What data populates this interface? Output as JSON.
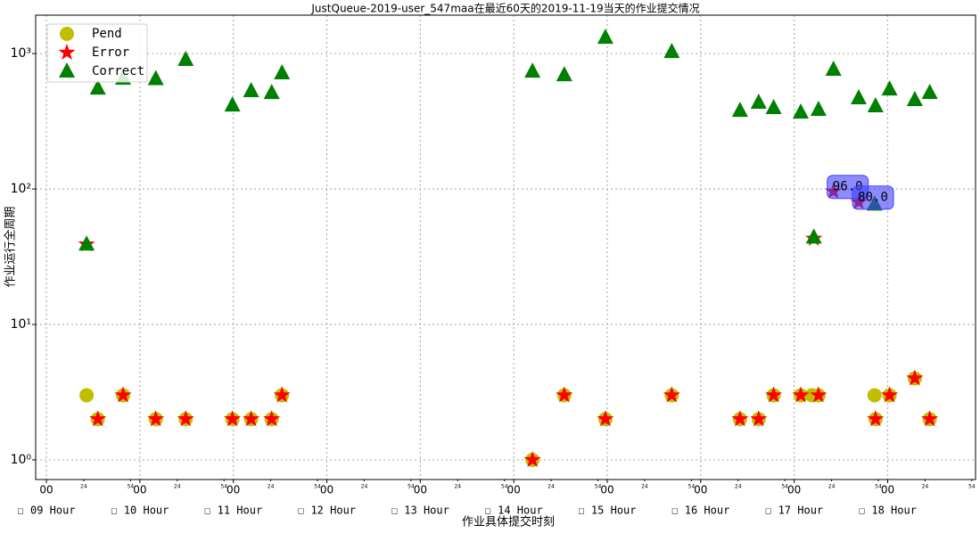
{
  "chart_data": {
    "type": "scatter",
    "title": "JustQueue-2019-user_547maa在最近60天的2019-11-19当天的作业提交情况",
    "x_label": "作业具体提交时刻",
    "y_label": "作业运行全周期",
    "log_y": true,
    "grid": true,
    "legend": "upper left",
    "xlim": [
      8.885,
      18.94
    ],
    "ylim": [
      0.716,
      1920
    ],
    "xticks": [
      {
        "value": 9,
        "label": "00"
      },
      {
        "value": 10,
        "label": "00"
      },
      {
        "value": 11,
        "label": "00"
      },
      {
        "value": 12,
        "label": "00"
      },
      {
        "value": 13,
        "label": "00"
      },
      {
        "value": 14,
        "label": "00"
      },
      {
        "value": 15,
        "label": "00"
      },
      {
        "value": 16,
        "label": "00"
      },
      {
        "value": 17,
        "label": "00"
      },
      {
        "value": 18,
        "label": "00"
      }
    ],
    "xminorticks": [
      {
        "value": 9.4,
        "label": "24"
      },
      {
        "value": 9.9,
        "label": "54"
      },
      {
        "value": 10.4,
        "label": "24"
      },
      {
        "value": 10.9,
        "label": "54"
      },
      {
        "value": 11.4,
        "label": "24"
      },
      {
        "value": 11.9,
        "label": "54"
      },
      {
        "value": 12.4,
        "label": "24"
      },
      {
        "value": 12.9,
        "label": "54"
      },
      {
        "value": 13.4,
        "label": "24"
      },
      {
        "value": 13.9,
        "label": "54"
      },
      {
        "value": 14.4,
        "label": "24"
      },
      {
        "value": 14.9,
        "label": "54"
      },
      {
        "value": 15.4,
        "label": "24"
      },
      {
        "value": 15.9,
        "label": "54"
      },
      {
        "value": 16.4,
        "label": "24"
      },
      {
        "value": 16.9,
        "label": "54"
      },
      {
        "value": 17.4,
        "label": "24"
      },
      {
        "value": 17.9,
        "label": "54"
      },
      {
        "value": 18.4,
        "label": "24"
      },
      {
        "value": 18.9,
        "label": "54"
      }
    ],
    "hour_labels": [
      {
        "value": 9,
        "label": "☐ 09 Hour"
      },
      {
        "value": 10,
        "label": "☐ 10 Hour"
      },
      {
        "value": 11,
        "label": "☐ 11 Hour"
      },
      {
        "value": 12,
        "label": "☐ 12 Hour"
      },
      {
        "value": 13,
        "label": "☐ 13 Hour"
      },
      {
        "value": 14,
        "label": "☐ 14 Hour"
      },
      {
        "value": 15,
        "label": "☐ 15 Hour"
      },
      {
        "value": 16,
        "label": "☐ 16 Hour"
      },
      {
        "value": 17,
        "label": "☐ 17 Hour"
      },
      {
        "value": 18,
        "label": "☐ 18 Hour"
      }
    ],
    "yticks": [
      {
        "value": 1,
        "label": "10⁰"
      },
      {
        "value": 10,
        "label": "10¹"
      },
      {
        "value": 100,
        "label": "10²"
      },
      {
        "value": 1000,
        "label": "10³"
      }
    ],
    "series": [
      {
        "name": "Pend",
        "marker": "circle",
        "color": "#bfbf00",
        "x": [
          9.43,
          9.55,
          9.82,
          10.17,
          10.49,
          10.99,
          11.19,
          11.41,
          11.52,
          14.2,
          14.54,
          14.98,
          15.69,
          16.42,
          16.62,
          16.78,
          17.07,
          17.19,
          17.26,
          17.86,
          17.87,
          18.02,
          18.29,
          18.45
        ],
        "values": [
          3,
          2,
          3,
          2,
          2,
          2,
          2,
          2,
          3,
          1,
          3,
          2,
          3,
          2,
          2,
          3,
          3,
          3,
          3,
          3,
          2,
          3,
          4,
          2
        ]
      },
      {
        "name": "Error",
        "marker": "star",
        "color": "#ff0000",
        "x": [
          9.43,
          9.55,
          9.82,
          10.17,
          10.49,
          10.99,
          11.19,
          11.41,
          11.52,
          14.2,
          14.54,
          14.98,
          15.69,
          16.42,
          16.62,
          16.78,
          17.07,
          17.21,
          17.26,
          17.42,
          17.69,
          17.87,
          18.02,
          18.29,
          18.45
        ],
        "values": [
          39,
          2,
          3,
          2,
          2,
          2,
          2,
          2,
          3,
          1,
          3,
          2,
          3,
          2,
          2,
          3,
          3,
          43,
          3,
          96,
          80,
          2,
          3,
          4,
          2
        ]
      },
      {
        "name": "Correct",
        "marker": "triangle",
        "color": "#008000",
        "x": [
          9.43,
          9.55,
          9.82,
          10.17,
          10.49,
          10.99,
          11.19,
          11.41,
          11.52,
          14.2,
          14.54,
          14.98,
          15.69,
          16.42,
          16.62,
          16.78,
          17.07,
          17.21,
          17.26,
          17.42,
          17.69,
          17.86,
          17.87,
          18.02,
          18.29,
          18.45
        ],
        "values": [
          39,
          553,
          655,
          650,
          900,
          415,
          530,
          513,
          717,
          738,
          695,
          1313,
          1030,
          379,
          435,
          397,
          368,
          44,
          385,
          762,
          469,
          77,
          409,
          545,
          455,
          514
        ]
      }
    ],
    "annotations": [
      {
        "x": 17.42,
        "y": 96,
        "label": "96.0"
      },
      {
        "x": 17.69,
        "y": 80,
        "label": "80.0"
      }
    ]
  }
}
